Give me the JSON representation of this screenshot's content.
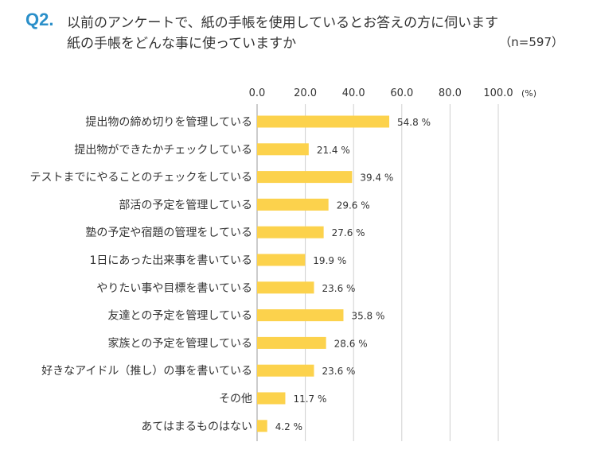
{
  "header": {
    "question_number": "Q2.",
    "question_line1": "以前のアンケートで、紙の手帳を使用しているとお答えの方に伺います",
    "question_line2": "紙の手帳をどんな事に使っていますか",
    "sample_size": "（n=597）"
  },
  "colors": {
    "bar": "#fcd24c",
    "accent": "#2a8fc9",
    "grid": "#d0d0d0",
    "axis": "#999999",
    "text": "#333333"
  },
  "chart_data": {
    "type": "bar",
    "orientation": "horizontal",
    "categories": [
      "提出物の締め切りを管理している",
      "提出物ができたかチェックしている",
      "テストまでにやることのチェックをしている",
      "部活の予定を管理している",
      "塾の予定や宿題の管理をしている",
      "1日にあった出来事を書いている",
      "やりたい事や目標を書いている",
      "友達との予定を管理している",
      "家族との予定を管理している",
      "好きなアイドル（推し）の事を書いている",
      "その他",
      "あてはまるものはない"
    ],
    "values": [
      54.8,
      21.4,
      39.4,
      29.6,
      27.6,
      19.9,
      23.6,
      35.8,
      28.6,
      23.6,
      11.7,
      4.2
    ],
    "value_labels": [
      "54.8 %",
      "21.4 %",
      "39.4 %",
      "29.6 %",
      "27.6 %",
      "19.9 %",
      "23.6 %",
      "35.8 %",
      "28.6 %",
      "23.6 %",
      "11.7 %",
      "4.2 %"
    ],
    "xlim": [
      0,
      100
    ],
    "ticks": [
      "0.0",
      "20.0",
      "40.0",
      "60.0",
      "80.0",
      "100.0"
    ],
    "tick_values": [
      0,
      20,
      40,
      60,
      80,
      100
    ],
    "unit_label": "(%)",
    "grid": true
  }
}
